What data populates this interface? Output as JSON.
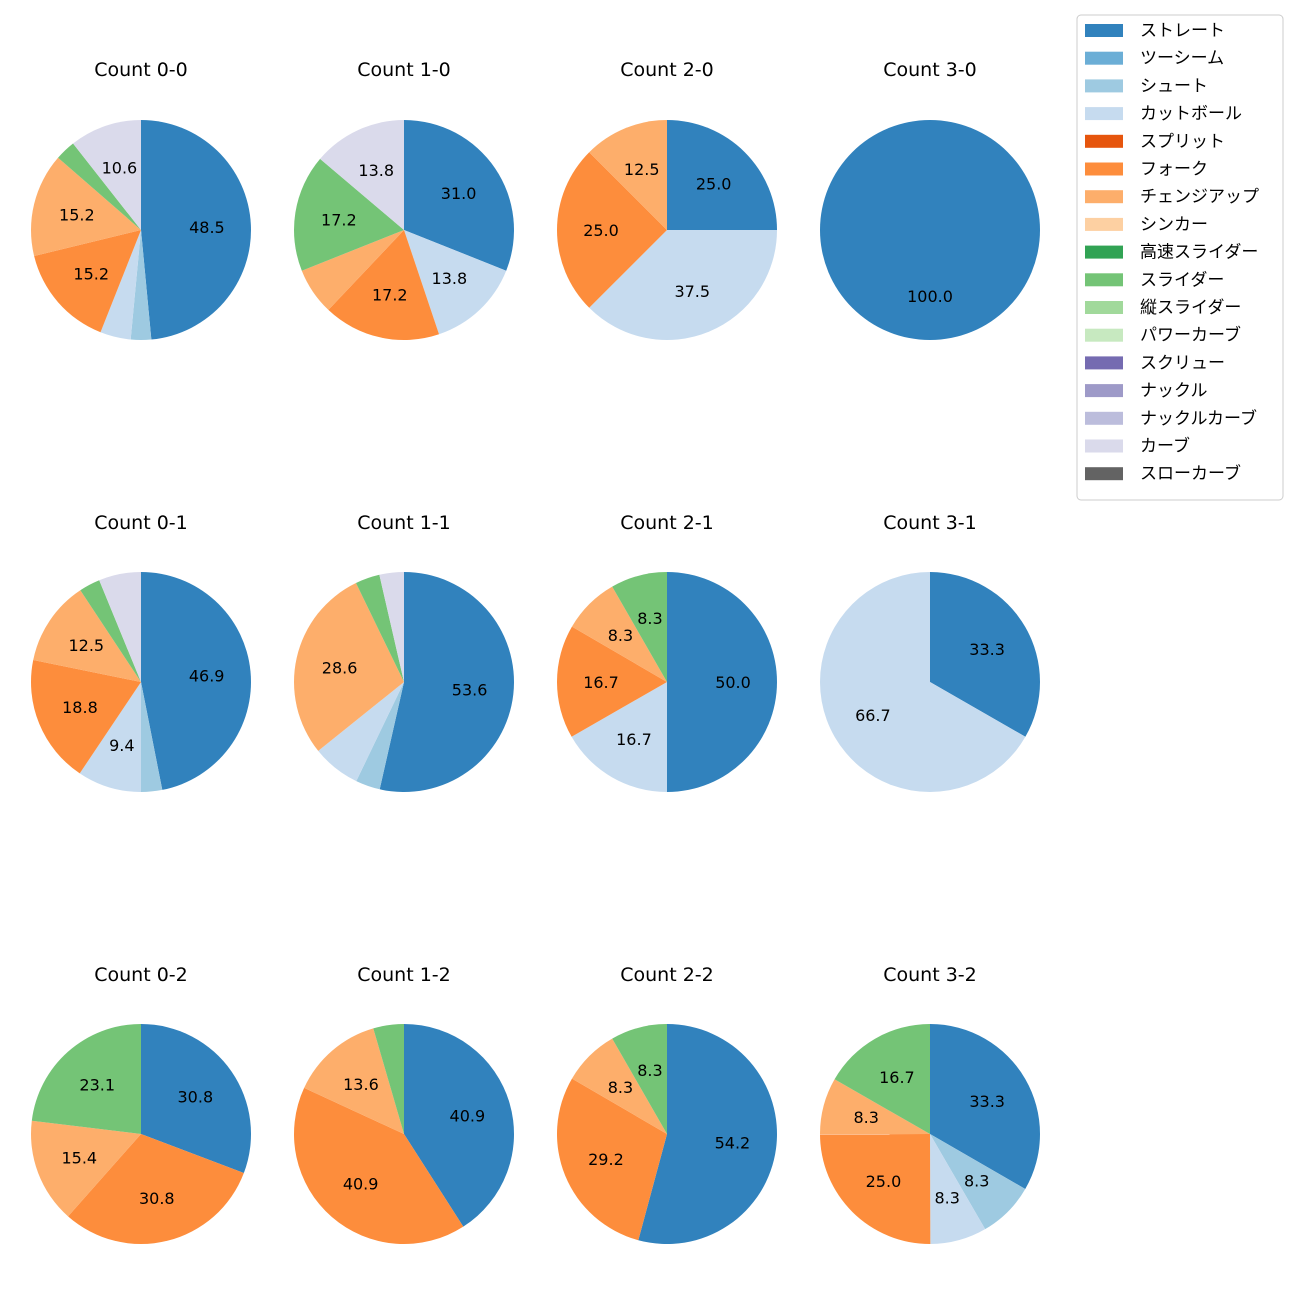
{
  "legend": {
    "placement": "top-right",
    "entries": [
      {
        "name": "ストレート",
        "color": "#3182bd"
      },
      {
        "name": "ツーシーム",
        "color": "#6baed6"
      },
      {
        "name": "シュート",
        "color": "#9ecae1"
      },
      {
        "name": "カットボール",
        "color": "#c6dbef"
      },
      {
        "name": "スプリット",
        "color": "#e6550d"
      },
      {
        "name": "フォーク",
        "color": "#fd8d3c"
      },
      {
        "name": "チェンジアップ",
        "color": "#fdae6b"
      },
      {
        "name": "シンカー",
        "color": "#fdd0a2"
      },
      {
        "name": "高速スライダー",
        "color": "#31a354"
      },
      {
        "name": "スライダー",
        "color": "#74c476"
      },
      {
        "name": "縦スライダー",
        "color": "#a1d99b"
      },
      {
        "name": "パワーカーブ",
        "color": "#c7e9c0"
      },
      {
        "name": "スクリュー",
        "color": "#756bb1"
      },
      {
        "name": "ナックル",
        "color": "#9e9ac8"
      },
      {
        "name": "ナックルカーブ",
        "color": "#bcbddc"
      },
      {
        "name": "カーブ",
        "color": "#dadaeb"
      },
      {
        "name": "スローカーブ",
        "color": "#636363"
      }
    ]
  },
  "chart_data": [
    {
      "type": "pie",
      "title": "Count 0-0",
      "start_angle": 90,
      "direction": "clockwise",
      "slices": [
        {
          "category": "ストレート",
          "value": 48.5,
          "label": "48.5"
        },
        {
          "category": "シュート",
          "value": 3.0,
          "label": ""
        },
        {
          "category": "カットボール",
          "value": 4.5,
          "label": ""
        },
        {
          "category": "フォーク",
          "value": 15.2,
          "label": "15.2"
        },
        {
          "category": "チェンジアップ",
          "value": 15.2,
          "label": "15.2"
        },
        {
          "category": "スライダー",
          "value": 3.0,
          "label": ""
        },
        {
          "category": "カーブ",
          "value": 10.6,
          "label": "10.6"
        }
      ]
    },
    {
      "type": "pie",
      "title": "Count 1-0",
      "start_angle": 90,
      "direction": "clockwise",
      "slices": [
        {
          "category": "ストレート",
          "value": 31.0,
          "label": "31.0"
        },
        {
          "category": "カットボール",
          "value": 13.8,
          "label": "13.8"
        },
        {
          "category": "フォーク",
          "value": 17.2,
          "label": "17.2"
        },
        {
          "category": "チェンジアップ",
          "value": 6.9,
          "label": ""
        },
        {
          "category": "スライダー",
          "value": 17.2,
          "label": "17.2"
        },
        {
          "category": "カーブ",
          "value": 13.8,
          "label": "13.8"
        }
      ]
    },
    {
      "type": "pie",
      "title": "Count 2-0",
      "start_angle": 90,
      "direction": "clockwise",
      "slices": [
        {
          "category": "ストレート",
          "value": 25.0,
          "label": "25.0"
        },
        {
          "category": "カットボール",
          "value": 37.5,
          "label": "37.5"
        },
        {
          "category": "フォーク",
          "value": 25.0,
          "label": "25.0"
        },
        {
          "category": "チェンジアップ",
          "value": 12.5,
          "label": "12.5"
        }
      ]
    },
    {
      "type": "pie",
      "title": "Count 3-0",
      "start_angle": 90,
      "direction": "clockwise",
      "slices": [
        {
          "category": "ストレート",
          "value": 100.0,
          "label": "100.0"
        }
      ]
    },
    {
      "type": "pie",
      "title": "Count 0-1",
      "start_angle": 90,
      "direction": "clockwise",
      "slices": [
        {
          "category": "ストレート",
          "value": 46.9,
          "label": "46.9"
        },
        {
          "category": "シュート",
          "value": 3.1,
          "label": ""
        },
        {
          "category": "カットボール",
          "value": 9.4,
          "label": "9.4"
        },
        {
          "category": "フォーク",
          "value": 18.8,
          "label": "18.8"
        },
        {
          "category": "チェンジアップ",
          "value": 12.5,
          "label": "12.5"
        },
        {
          "category": "スライダー",
          "value": 3.1,
          "label": ""
        },
        {
          "category": "カーブ",
          "value": 6.2,
          "label": ""
        }
      ]
    },
    {
      "type": "pie",
      "title": "Count 1-1",
      "start_angle": 90,
      "direction": "clockwise",
      "slices": [
        {
          "category": "ストレート",
          "value": 53.6,
          "label": "53.6"
        },
        {
          "category": "シュート",
          "value": 3.6,
          "label": ""
        },
        {
          "category": "カットボール",
          "value": 7.1,
          "label": ""
        },
        {
          "category": "チェンジアップ",
          "value": 28.6,
          "label": "28.6"
        },
        {
          "category": "スライダー",
          "value": 3.6,
          "label": ""
        },
        {
          "category": "カーブ",
          "value": 3.6,
          "label": ""
        }
      ]
    },
    {
      "type": "pie",
      "title": "Count 2-1",
      "start_angle": 90,
      "direction": "clockwise",
      "slices": [
        {
          "category": "ストレート",
          "value": 50.0,
          "label": "50.0"
        },
        {
          "category": "カットボール",
          "value": 16.7,
          "label": "16.7"
        },
        {
          "category": "フォーク",
          "value": 16.7,
          "label": "16.7"
        },
        {
          "category": "チェンジアップ",
          "value": 8.3,
          "label": "8.3"
        },
        {
          "category": "スライダー",
          "value": 8.3,
          "label": "8.3"
        }
      ]
    },
    {
      "type": "pie",
      "title": "Count 3-1",
      "start_angle": 90,
      "direction": "clockwise",
      "slices": [
        {
          "category": "ストレート",
          "value": 33.3,
          "label": "33.3"
        },
        {
          "category": "カットボール",
          "value": 66.7,
          "label": "66.7"
        }
      ]
    },
    {
      "type": "pie",
      "title": "Count 0-2",
      "start_angle": 90,
      "direction": "clockwise",
      "slices": [
        {
          "category": "ストレート",
          "value": 30.8,
          "label": "30.8"
        },
        {
          "category": "フォーク",
          "value": 30.8,
          "label": "30.8"
        },
        {
          "category": "チェンジアップ",
          "value": 15.4,
          "label": "15.4"
        },
        {
          "category": "スライダー",
          "value": 23.1,
          "label": "23.1"
        }
      ]
    },
    {
      "type": "pie",
      "title": "Count 1-2",
      "start_angle": 90,
      "direction": "clockwise",
      "slices": [
        {
          "category": "ストレート",
          "value": 40.9,
          "label": "40.9"
        },
        {
          "category": "フォーク",
          "value": 40.9,
          "label": "40.9"
        },
        {
          "category": "チェンジアップ",
          "value": 13.6,
          "label": "13.6"
        },
        {
          "category": "スライダー",
          "value": 4.5,
          "label": ""
        }
      ]
    },
    {
      "type": "pie",
      "title": "Count 2-2",
      "start_angle": 90,
      "direction": "clockwise",
      "slices": [
        {
          "category": "ストレート",
          "value": 54.2,
          "label": "54.2"
        },
        {
          "category": "フォーク",
          "value": 29.2,
          "label": "29.2"
        },
        {
          "category": "チェンジアップ",
          "value": 8.3,
          "label": "8.3"
        },
        {
          "category": "スライダー",
          "value": 8.3,
          "label": "8.3"
        }
      ]
    },
    {
      "type": "pie",
      "title": "Count 3-2",
      "start_angle": 90,
      "direction": "clockwise",
      "slices": [
        {
          "category": "ストレート",
          "value": 33.3,
          "label": "33.3"
        },
        {
          "category": "シュート",
          "value": 8.3,
          "label": "8.3"
        },
        {
          "category": "カットボール",
          "value": 8.3,
          "label": "8.3"
        },
        {
          "category": "フォーク",
          "value": 25.0,
          "label": "25.0"
        },
        {
          "category": "チェンジアップ",
          "value": 8.3,
          "label": "8.3"
        },
        {
          "category": "スライダー",
          "value": 16.7,
          "label": "16.7"
        }
      ]
    }
  ]
}
